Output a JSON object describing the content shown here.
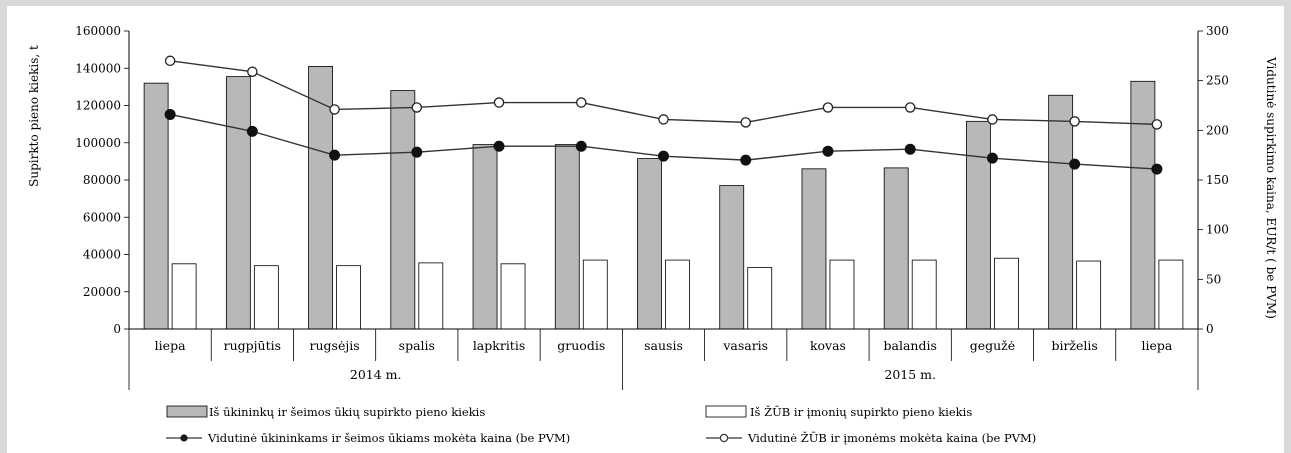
{
  "chart_data": {
    "type": "bar",
    "categories": [
      "liepa",
      "rugpjūtis",
      "rugsėjis",
      "spalis",
      "lapkritis",
      "gruodis",
      "sausis",
      "vasaris",
      "kovas",
      "balandis",
      "gegužė",
      "birželis",
      "liepa"
    ],
    "groups": [
      {
        "label": "2014 m.",
        "count": 6
      },
      {
        "label": "2015 m.",
        "count": 7
      }
    ],
    "ylabel": "Supirkto pieno kiekis, t",
    "y2label": "Vidutinė supirkimo kaina, EUR/t ( be PVM)",
    "ylim": [
      0,
      160000
    ],
    "y2lim": [
      0,
      300
    ],
    "yticks": [
      "0",
      "20000",
      "40000",
      "60000",
      "80000",
      "100000",
      "120000",
      "140000",
      "160000"
    ],
    "y2ticks": [
      "0",
      "50",
      "100",
      "150",
      "200",
      "250",
      "300"
    ],
    "bar_series": [
      {
        "name": "Iš ūkininkų ir šeimos ūkių supirkto pieno kiekis",
        "color": "#b8b8b8",
        "values": [
          132000,
          135500,
          141000,
          128000,
          99000,
          99000,
          91500,
          77000,
          86000,
          86500,
          111500,
          125500,
          133000
        ]
      },
      {
        "name": "Iš ŽŪB ir įmonių supirkto pieno kiekis",
        "color": "#ffffff",
        "values": [
          35000,
          34000,
          34000,
          35500,
          35000,
          37000,
          37000,
          33000,
          37000,
          37000,
          38000,
          36500,
          37000
        ]
      }
    ],
    "line_series": [
      {
        "name": "Vidutinė ūkininkams ir šeimos ūkiams mokėta kaina (be PVM)",
        "marker": "filled",
        "values": [
          216,
          199,
          175,
          178,
          184,
          184,
          174,
          170,
          179,
          181,
          172,
          166,
          161
        ]
      },
      {
        "name": "Vidutinė ŽŪB ir įmonėms mokėta kaina (be PVM)",
        "marker": "open",
        "values": [
          270,
          259,
          221,
          223,
          228,
          228,
          211,
          208,
          223,
          223,
          211,
          209,
          206
        ]
      }
    ],
    "legend_position": "bottom",
    "grid": false
  }
}
